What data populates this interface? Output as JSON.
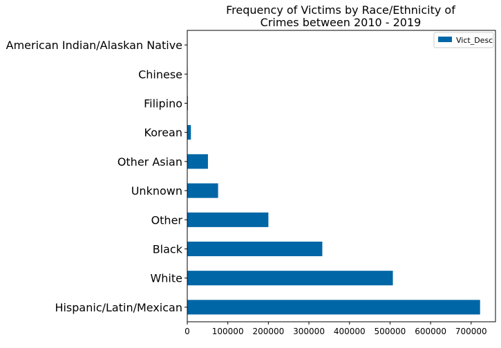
{
  "chart_data": {
    "type": "bar",
    "orientation": "horizontal",
    "title_lines": [
      "Frequency of Victims by Race/Ethnicity of",
      "Crimes between 2010 - 2019"
    ],
    "categories": [
      "Hispanic/Latin/Mexican",
      "White",
      "Black",
      "Other",
      "Unknown",
      "Other Asian",
      "Korean",
      "Filipino",
      "Chinese",
      "American Indian/Alaskan Native"
    ],
    "series": [
      {
        "name": "Vict_Desc",
        "color": "#0066a6",
        "values": [
          722000,
          507000,
          333000,
          200000,
          76000,
          51000,
          9000,
          1500,
          1000,
          500
        ]
      }
    ],
    "xlim": [
      0,
      760000
    ],
    "xticks": [
      0,
      100000,
      200000,
      300000,
      400000,
      500000,
      600000,
      700000
    ],
    "xtick_labels": [
      "0",
      "100000",
      "200000",
      "300000",
      "400000",
      "500000",
      "600000",
      "700000"
    ],
    "grid": false,
    "legend_position": "top-right"
  }
}
